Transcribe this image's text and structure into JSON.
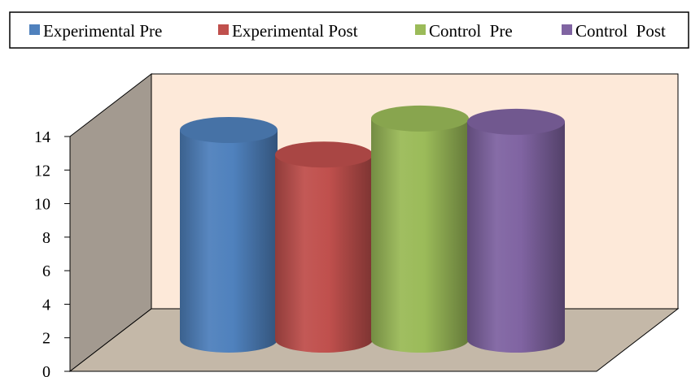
{
  "chart_data": {
    "type": "bar",
    "style": "3d-cylinder",
    "categories": [
      ""
    ],
    "series": [
      {
        "name": "Experimental Pre",
        "values": [
          12.8
        ],
        "color": "#4F81BD"
      },
      {
        "name": "Experimental Post",
        "values": [
          11.3
        ],
        "color": "#C0504D"
      },
      {
        "name": "Control  Pre",
        "values": [
          13.5
        ],
        "color": "#9BBB59"
      },
      {
        "name": "Control  Post",
        "values": [
          13.3
        ],
        "color": "#8064A2"
      }
    ],
    "ylim": [
      0,
      14
    ],
    "yticks": [
      "0",
      "2",
      "4",
      "6",
      "8",
      "10",
      "12",
      "14"
    ],
    "title": "",
    "xlabel": "",
    "ylabel": "",
    "legend": "top",
    "grid": false,
    "colors": {
      "back_wall": "#FDE9D9",
      "side_wall": "#A39A90",
      "floor": "#C4B8A8"
    }
  }
}
